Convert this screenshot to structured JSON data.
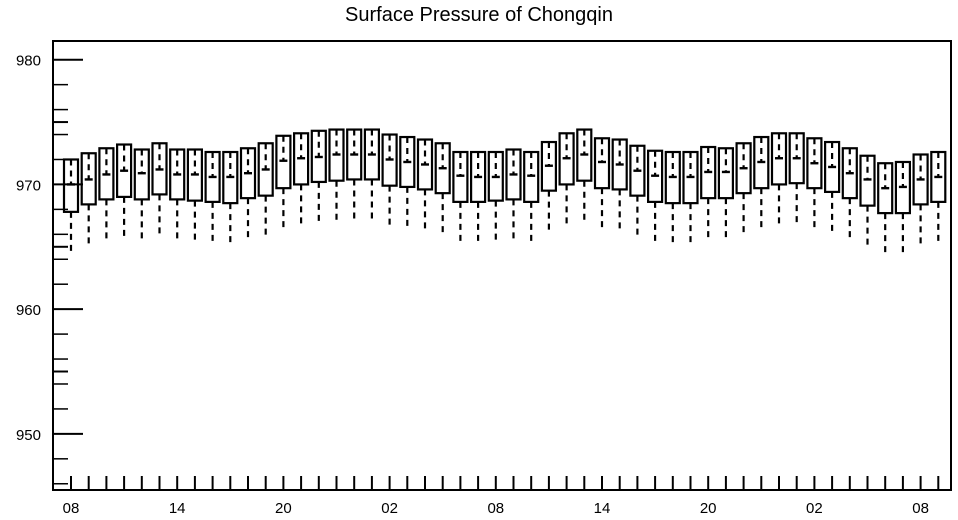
{
  "chart_data": {
    "type": "boxplot",
    "title": "Surface Pressure of Chongqin",
    "xlabel": "",
    "ylabel": "",
    "ylim": [
      945.5,
      981.5
    ],
    "yticks": [
      950,
      960,
      970,
      980
    ],
    "x_tick_labels": [
      "08",
      "14",
      "20",
      "02",
      "08",
      "14",
      "20",
      "02",
      "08"
    ],
    "x_tick_label_hours": [
      0,
      6,
      12,
      18,
      24,
      30,
      36,
      42,
      48
    ],
    "grid": false,
    "series": [
      {
        "x": 0,
        "whisker_low": 964.5,
        "q1": 967.8,
        "median": 970.0,
        "q3": 972.0,
        "whisker_high": 974.0
      },
      {
        "x": 1,
        "whisker_low": 965.2,
        "q1": 968.4,
        "median": 970.4,
        "q3": 972.5,
        "whisker_high": 974.4
      },
      {
        "x": 2,
        "whisker_low": 965.5,
        "q1": 968.8,
        "median": 970.8,
        "q3": 972.9,
        "whisker_high": 974.8
      },
      {
        "x": 3,
        "whisker_low": 965.7,
        "q1": 969.0,
        "median": 971.1,
        "q3": 973.2,
        "whisker_high": 975.2
      },
      {
        "x": 4,
        "whisker_low": 965.5,
        "q1": 968.8,
        "median": 970.9,
        "q3": 972.8,
        "whisker_high": 974.8
      },
      {
        "x": 5,
        "whisker_low": 965.9,
        "q1": 969.2,
        "median": 971.2,
        "q3": 973.3,
        "whisker_high": 975.1
      },
      {
        "x": 6,
        "whisker_low": 965.5,
        "q1": 968.8,
        "median": 970.8,
        "q3": 972.8,
        "whisker_high": 974.7
      },
      {
        "x": 7,
        "whisker_low": 965.4,
        "q1": 968.7,
        "median": 970.8,
        "q3": 972.8,
        "whisker_high": 974.7
      },
      {
        "x": 8,
        "whisker_low": 965.3,
        "q1": 968.6,
        "median": 970.6,
        "q3": 972.6,
        "whisker_high": 974.5
      },
      {
        "x": 9,
        "whisker_low": 965.2,
        "q1": 968.5,
        "median": 970.6,
        "q3": 972.6,
        "whisker_high": 974.5
      },
      {
        "x": 10,
        "whisker_low": 965.6,
        "q1": 968.9,
        "median": 970.9,
        "q3": 972.9,
        "whisker_high": 974.9
      },
      {
        "x": 11,
        "whisker_low": 965.8,
        "q1": 969.1,
        "median": 971.2,
        "q3": 973.3,
        "whisker_high": 975.2
      },
      {
        "x": 12,
        "whisker_low": 966.5,
        "q1": 969.7,
        "median": 971.9,
        "q3": 973.9,
        "whisker_high": 975.8
      },
      {
        "x": 13,
        "whisker_low": 966.7,
        "q1": 970.0,
        "median": 972.1,
        "q3": 974.1,
        "whisker_high": 976.1
      },
      {
        "x": 14,
        "whisker_low": 966.9,
        "q1": 970.2,
        "median": 972.2,
        "q3": 974.3,
        "whisker_high": 976.2
      },
      {
        "x": 15,
        "whisker_low": 967.0,
        "q1": 970.3,
        "median": 972.4,
        "q3": 974.4,
        "whisker_high": 976.4
      },
      {
        "x": 16,
        "whisker_low": 967.1,
        "q1": 970.4,
        "median": 972.4,
        "q3": 974.4,
        "whisker_high": 976.4
      },
      {
        "x": 17,
        "whisker_low": 967.0,
        "q1": 970.4,
        "median": 972.4,
        "q3": 974.4,
        "whisker_high": 976.3
      },
      {
        "x": 18,
        "whisker_low": 966.7,
        "q1": 969.9,
        "median": 972.0,
        "q3": 974.0,
        "whisker_high": 976.0
      },
      {
        "x": 19,
        "whisker_low": 966.5,
        "q1": 969.8,
        "median": 971.8,
        "q3": 973.8,
        "whisker_high": 975.8
      },
      {
        "x": 20,
        "whisker_low": 966.3,
        "q1": 969.6,
        "median": 971.6,
        "q3": 973.6,
        "whisker_high": 975.6
      },
      {
        "x": 21,
        "whisker_low": 966.0,
        "q1": 969.3,
        "median": 971.3,
        "q3": 973.3,
        "whisker_high": 975.2
      },
      {
        "x": 22,
        "whisker_low": 965.4,
        "q1": 968.6,
        "median": 970.7,
        "q3": 972.6,
        "whisker_high": 974.6
      },
      {
        "x": 23,
        "whisker_low": 965.3,
        "q1": 968.6,
        "median": 970.6,
        "q3": 972.6,
        "whisker_high": 974.5
      },
      {
        "x": 24,
        "whisker_low": 965.4,
        "q1": 968.7,
        "median": 970.6,
        "q3": 972.6,
        "whisker_high": 974.5
      },
      {
        "x": 25,
        "whisker_low": 965.5,
        "q1": 968.8,
        "median": 970.8,
        "q3": 972.8,
        "whisker_high": 974.7
      },
      {
        "x": 26,
        "whisker_low": 965.4,
        "q1": 968.6,
        "median": 970.7,
        "q3": 972.6,
        "whisker_high": 974.6
      },
      {
        "x": 27,
        "whisker_low": 966.2,
        "q1": 969.5,
        "median": 971.5,
        "q3": 973.4,
        "whisker_high": 975.4
      },
      {
        "x": 28,
        "whisker_low": 966.8,
        "q1": 970.0,
        "median": 972.1,
        "q3": 974.1,
        "whisker_high": 976.0
      },
      {
        "x": 29,
        "whisker_low": 967.1,
        "q1": 970.3,
        "median": 972.4,
        "q3": 974.4,
        "whisker_high": 976.3
      },
      {
        "x": 30,
        "whisker_low": 966.4,
        "q1": 969.7,
        "median": 971.8,
        "q3": 973.7,
        "whisker_high": 975.7
      },
      {
        "x": 31,
        "whisker_low": 966.3,
        "q1": 969.6,
        "median": 971.6,
        "q3": 973.6,
        "whisker_high": 975.5
      },
      {
        "x": 32,
        "whisker_low": 965.8,
        "q1": 969.1,
        "median": 971.1,
        "q3": 973.1,
        "whisker_high": 975.0
      },
      {
        "x": 33,
        "whisker_low": 965.4,
        "q1": 968.6,
        "median": 970.7,
        "q3": 972.7,
        "whisker_high": 974.6
      },
      {
        "x": 34,
        "whisker_low": 965.2,
        "q1": 968.5,
        "median": 970.6,
        "q3": 972.6,
        "whisker_high": 974.5
      },
      {
        "x": 35,
        "whisker_low": 965.2,
        "q1": 968.5,
        "median": 970.6,
        "q3": 972.6,
        "whisker_high": 974.5
      },
      {
        "x": 36,
        "whisker_low": 965.6,
        "q1": 968.9,
        "median": 971.0,
        "q3": 973.0,
        "whisker_high": 974.9
      },
      {
        "x": 37,
        "whisker_low": 965.6,
        "q1": 968.9,
        "median": 971.0,
        "q3": 972.9,
        "whisker_high": 974.8
      },
      {
        "x": 38,
        "whisker_low": 966.0,
        "q1": 969.3,
        "median": 971.3,
        "q3": 973.3,
        "whisker_high": 975.2
      },
      {
        "x": 39,
        "whisker_low": 966.4,
        "q1": 969.7,
        "median": 971.8,
        "q3": 973.8,
        "whisker_high": 975.7
      },
      {
        "x": 40,
        "whisker_low": 966.7,
        "q1": 970.0,
        "median": 972.1,
        "q3": 974.1,
        "whisker_high": 976.0
      },
      {
        "x": 41,
        "whisker_low": 966.8,
        "q1": 970.1,
        "median": 972.1,
        "q3": 974.1,
        "whisker_high": 976.0
      },
      {
        "x": 42,
        "whisker_low": 966.5,
        "q1": 969.7,
        "median": 971.7,
        "q3": 973.7,
        "whisker_high": 975.7
      },
      {
        "x": 43,
        "whisker_low": 966.2,
        "q1": 969.4,
        "median": 971.4,
        "q3": 973.4,
        "whisker_high": 975.4
      },
      {
        "x": 44,
        "whisker_low": 965.6,
        "q1": 968.9,
        "median": 970.9,
        "q3": 972.9,
        "whisker_high": 974.8
      },
      {
        "x": 45,
        "whisker_low": 965.0,
        "q1": 968.3,
        "median": 970.4,
        "q3": 972.3,
        "whisker_high": 974.2
      },
      {
        "x": 46,
        "whisker_low": 964.5,
        "q1": 967.7,
        "median": 969.7,
        "q3": 971.7,
        "whisker_high": 973.6
      },
      {
        "x": 47,
        "whisker_low": 964.5,
        "q1": 967.7,
        "median": 969.8,
        "q3": 971.8,
        "whisker_high": 973.7
      },
      {
        "x": 48,
        "whisker_low": 965.1,
        "q1": 968.4,
        "median": 970.4,
        "q3": 972.4,
        "whisker_high": 974.3
      },
      {
        "x": 49,
        "whisker_low": 965.4,
        "q1": 968.6,
        "median": 970.6,
        "q3": 972.6,
        "whisker_high": 974.5
      }
    ]
  }
}
